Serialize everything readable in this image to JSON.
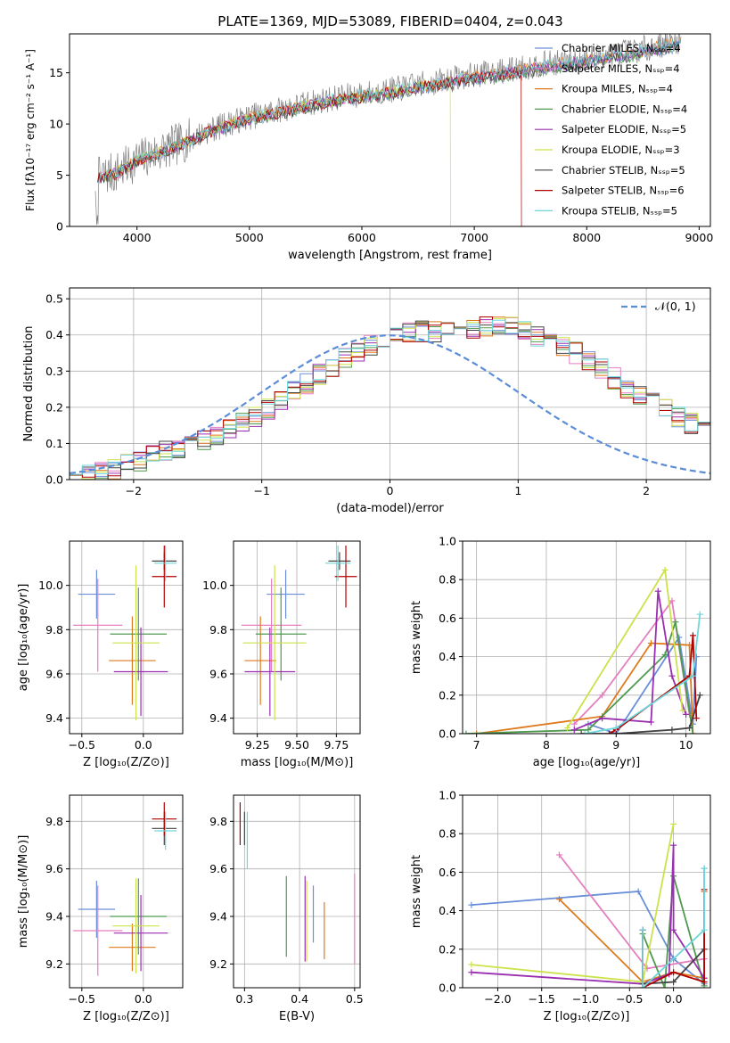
{
  "figure_title": "PLATE=1369, MJD=53089, FIBERID=0404, z=0.043",
  "colors": {
    "chabrier_miles": "#6a8fd8",
    "salpeter_miles": "#e57fc0",
    "kroupa_miles": "#de7a1e",
    "chabrier_elodie": "#4f9a4f",
    "salpeter_elodie": "#9a2eb0",
    "kroupa_elodie": "#cde24a",
    "chabrier_stelib": "#444444",
    "salpeter_stelib": "#b00000",
    "kroupa_stelib": "#6fd6dc",
    "spectrum": "#808080",
    "normal_curve": "#5b8dd9",
    "grid": "#b0b0b0"
  },
  "chart_data": [
    {
      "id": "spectrum",
      "type": "line",
      "xlabel": "wavelength [Angstrom, rest frame]",
      "ylabel": "Flux [fλ10⁻¹⁷ erg cm⁻² s⁻¹ A⁻¹]",
      "xlim": [
        3400,
        9100
      ],
      "ylim": [
        0,
        18.8
      ],
      "xticks": [
        4000,
        5000,
        6000,
        7000,
        8000,
        9000
      ],
      "yticks": [
        0,
        5,
        10,
        15
      ],
      "grid": false,
      "legend_position": "right",
      "legend": [
        {
          "label": "Chabrier MILES, Nₛₛₚ=4",
          "color_key": "chabrier_miles"
        },
        {
          "label": "Salpeter MILES, Nₛₛₚ=4",
          "color_key": "salpeter_miles"
        },
        {
          "label": "Kroupa MILES, Nₛₛₚ=4",
          "color_key": "kroupa_miles"
        },
        {
          "label": "Chabrier ELODIE, Nₛₛₚ=4",
          "color_key": "chabrier_elodie"
        },
        {
          "label": "Salpeter ELODIE, Nₛₛₚ=5",
          "color_key": "salpeter_elodie"
        },
        {
          "label": "Kroupa ELODIE, Nₛₛₚ=3",
          "color_key": "kroupa_elodie"
        },
        {
          "label": "Chabrier STELIB, Nₛₛₚ=5",
          "color_key": "chabrier_stelib"
        },
        {
          "label": "Salpeter STELIB, Nₛₛₚ=6",
          "color_key": "salpeter_stelib"
        },
        {
          "label": "Kroupa STELIB, Nₛₛₚ=5",
          "color_key": "kroupa_stelib"
        }
      ],
      "continuum": {
        "x": [
          3620,
          3700,
          3800,
          3900,
          4000,
          4200,
          4400,
          4600,
          4800,
          5000,
          5200,
          5400,
          5600,
          5800,
          6000,
          6200,
          6400,
          6600,
          6800,
          7000,
          7200,
          7400,
          7600,
          7800,
          8000,
          8200,
          8400,
          8600,
          8800
        ],
        "y": [
          4.5,
          5.0,
          5.2,
          5.8,
          6.5,
          7.3,
          8.2,
          9.2,
          10.0,
          10.7,
          11.2,
          11.7,
          12.2,
          12.6,
          12.9,
          13.2,
          13.6,
          14.0,
          14.4,
          14.8,
          15.1,
          15.4,
          15.8,
          16.1,
          16.4,
          16.8,
          17.1,
          17.6,
          18.1
        ]
      }
    },
    {
      "id": "residuals",
      "type": "histogram",
      "xlabel": "(data-model)/error",
      "ylabel": "Normed distribution",
      "xlim": [
        -2.5,
        2.5
      ],
      "ylim": [
        0,
        0.53
      ],
      "xticks": [
        -2,
        -1,
        0,
        1,
        2
      ],
      "yticks": [
        0.0,
        0.1,
        0.2,
        0.3,
        0.4,
        0.5
      ],
      "grid": true,
      "legend_position": "top-right",
      "legend": [
        {
          "label": "𝒩(0, 1)",
          "color_key": "normal_curve"
        }
      ],
      "bin_width": 0.1,
      "bin_start": -2.5,
      "base_profile": [
        0.02,
        0.02,
        0.025,
        0.03,
        0.04,
        0.05,
        0.065,
        0.08,
        0.09,
        0.1,
        0.11,
        0.125,
        0.14,
        0.155,
        0.175,
        0.195,
        0.22,
        0.245,
        0.265,
        0.29,
        0.31,
        0.335,
        0.355,
        0.37,
        0.385,
        0.395,
        0.405,
        0.41,
        0.41,
        0.415,
        0.415,
        0.42,
        0.42,
        0.425,
        0.42,
        0.41,
        0.395,
        0.385,
        0.37,
        0.35,
        0.325,
        0.305,
        0.28,
        0.255,
        0.235,
        0.215,
        0.195,
        0.175,
        0.155,
        0.135,
        0.12,
        0.105,
        0.09,
        0.075,
        0.065,
        0.055,
        0.045,
        0.035,
        0.03,
        0.025
      ]
    },
    {
      "id": "age_vs_z",
      "type": "errorbar",
      "xlabel": "Z [log₁₀(Z/Z⊙)]",
      "ylabel": "age  [log₁₀(age/yr)]",
      "xlim": [
        -0.6,
        0.32
      ],
      "ylim": [
        9.33,
        10.2
      ],
      "xticks": [
        -0.5,
        0.0
      ],
      "yticks": [
        9.4,
        9.6,
        9.8,
        10.0
      ],
      "grid": true,
      "points": [
        {
          "color_key": "chabrier_miles",
          "x": -0.38,
          "xerr": 0.15,
          "y": 9.96,
          "yerr": 0.11
        },
        {
          "color_key": "salpeter_miles",
          "x": -0.37,
          "xerr": 0.2,
          "y": 9.82,
          "yerr": 0.21
        },
        {
          "color_key": "kroupa_miles",
          "x": -0.09,
          "xerr": 0.19,
          "y": 9.66,
          "yerr": 0.2
        },
        {
          "color_key": "chabrier_elodie",
          "x": -0.04,
          "xerr": 0.23,
          "y": 9.78,
          "yerr": 0.21
        },
        {
          "color_key": "salpeter_elodie",
          "x": -0.02,
          "xerr": 0.22,
          "y": 9.61,
          "yerr": 0.2
        },
        {
          "color_key": "kroupa_elodie",
          "x": -0.06,
          "xerr": 0.19,
          "y": 9.74,
          "yerr": 0.35
        },
        {
          "color_key": "chabrier_stelib",
          "x": 0.17,
          "xerr": 0.1,
          "y": 10.11,
          "yerr": 0.04
        },
        {
          "color_key": "salpeter_stelib",
          "x": 0.17,
          "xerr": 0.1,
          "y": 10.04,
          "yerr": 0.14
        },
        {
          "color_key": "kroupa_stelib",
          "x": 0.18,
          "xerr": 0.09,
          "y": 10.1,
          "yerr": 0.08
        }
      ]
    },
    {
      "id": "age_vs_mass",
      "type": "errorbar",
      "xlabel": "mass [log₁₀(M/M⊙)]",
      "ylabel": "",
      "xlim": [
        9.1,
        9.9
      ],
      "ylim": [
        9.33,
        10.2
      ],
      "xticks": [
        9.25,
        9.5,
        9.75
      ],
      "yticks": [
        9.4,
        9.6,
        9.8,
        10.0
      ],
      "grid": true,
      "points": [
        {
          "color_key": "chabrier_miles",
          "x": 9.43,
          "xerr": 0.12,
          "y": 9.96,
          "yerr": 0.11
        },
        {
          "color_key": "salpeter_miles",
          "x": 9.34,
          "xerr": 0.19,
          "y": 9.82,
          "yerr": 0.21
        },
        {
          "color_key": "kroupa_miles",
          "x": 9.27,
          "xerr": 0.1,
          "y": 9.66,
          "yerr": 0.2
        },
        {
          "color_key": "chabrier_elodie",
          "x": 9.4,
          "xerr": 0.16,
          "y": 9.78,
          "yerr": 0.21
        },
        {
          "color_key": "salpeter_elodie",
          "x": 9.33,
          "xerr": 0.16,
          "y": 9.61,
          "yerr": 0.2
        },
        {
          "color_key": "kroupa_elodie",
          "x": 9.36,
          "xerr": 0.2,
          "y": 9.74,
          "yerr": 0.35
        },
        {
          "color_key": "chabrier_stelib",
          "x": 9.77,
          "xerr": 0.07,
          "y": 10.11,
          "yerr": 0.04
        },
        {
          "color_key": "salpeter_stelib",
          "x": 9.81,
          "xerr": 0.07,
          "y": 10.04,
          "yerr": 0.14
        },
        {
          "color_key": "kroupa_stelib",
          "x": 9.76,
          "xerr": 0.08,
          "y": 10.1,
          "yerr": 0.08
        }
      ]
    },
    {
      "id": "weight_vs_age",
      "type": "line",
      "xlabel": "age  [log₁₀(age/yr)]",
      "ylabel": "mass weight",
      "xlim": [
        6.8,
        10.35
      ],
      "ylim": [
        0,
        1
      ],
      "xticks": [
        7,
        8,
        9,
        10
      ],
      "yticks": [
        0.0,
        0.2,
        0.4,
        0.6,
        0.8,
        1.0
      ],
      "grid": true,
      "series": [
        {
          "color_key": "chabrier_miles",
          "x": [
            8.6,
            9.0,
            9.9,
            10.1,
            10.15
          ],
          "y": [
            0.05,
            0.0,
            0.5,
            0.05,
            0.4
          ]
        },
        {
          "color_key": "salpeter_miles",
          "x": [
            8.4,
            8.8,
            9.8,
            10.05
          ],
          "y": [
            0.05,
            0.2,
            0.69,
            0.1
          ]
        },
        {
          "color_key": "kroupa_miles",
          "x": [
            7.0,
            8.8,
            9.5,
            10.05,
            10.1
          ],
          "y": [
            0.0,
            0.09,
            0.47,
            0.46,
            0.0
          ]
        },
        {
          "color_key": "chabrier_elodie",
          "x": [
            6.85,
            8.6,
            9.7,
            9.85,
            10.1
          ],
          "y": [
            0.0,
            0.02,
            0.41,
            0.58,
            0.0
          ]
        },
        {
          "color_key": "salpeter_elodie",
          "x": [
            8.4,
            8.8,
            9.5,
            9.6,
            9.8,
            10.0
          ],
          "y": [
            0.02,
            0.08,
            0.06,
            0.74,
            0.3,
            0.1
          ]
        },
        {
          "color_key": "kroupa_elodie",
          "x": [
            8.3,
            9.7,
            9.95
          ],
          "y": [
            0.03,
            0.85,
            0.12
          ]
        },
        {
          "color_key": "chabrier_stelib",
          "x": [
            8.5,
            9.0,
            9.8,
            10.05,
            10.2
          ],
          "y": [
            0.0,
            0.0,
            0.02,
            0.03,
            0.2
          ]
        },
        {
          "color_key": "salpeter_stelib",
          "x": [
            8.9,
            9.0,
            10.05,
            10.1,
            10.15
          ],
          "y": [
            0.0,
            0.02,
            0.3,
            0.51,
            0.08
          ]
        },
        {
          "color_key": "kroupa_stelib",
          "x": [
            8.55,
            9.0,
            10.1,
            10.2
          ],
          "y": [
            0.0,
            0.03,
            0.3,
            0.62
          ]
        }
      ]
    },
    {
      "id": "mass_vs_z",
      "type": "errorbar",
      "xlabel": "Z [log₁₀(Z/Z⊙)]",
      "ylabel": "mass [log₁₀(M/M⊙)]",
      "xlim": [
        -0.6,
        0.32
      ],
      "ylim": [
        9.1,
        9.91
      ],
      "xticks": [
        -0.5,
        0.0
      ],
      "yticks": [
        9.2,
        9.4,
        9.6,
        9.8
      ],
      "grid": true,
      "points": [
        {
          "color_key": "chabrier_miles",
          "x": -0.38,
          "xerr": 0.15,
          "y": 9.43,
          "yerr": 0.12
        },
        {
          "color_key": "salpeter_miles",
          "x": -0.37,
          "xerr": 0.2,
          "y": 9.34,
          "yerr": 0.19
        },
        {
          "color_key": "kroupa_miles",
          "x": -0.09,
          "xerr": 0.19,
          "y": 9.27,
          "yerr": 0.1
        },
        {
          "color_key": "chabrier_elodie",
          "x": -0.04,
          "xerr": 0.23,
          "y": 9.4,
          "yerr": 0.16
        },
        {
          "color_key": "salpeter_elodie",
          "x": -0.02,
          "xerr": 0.22,
          "y": 9.33,
          "yerr": 0.16
        },
        {
          "color_key": "kroupa_elodie",
          "x": -0.06,
          "xerr": 0.19,
          "y": 9.36,
          "yerr": 0.2
        },
        {
          "color_key": "chabrier_stelib",
          "x": 0.17,
          "xerr": 0.1,
          "y": 9.77,
          "yerr": 0.07
        },
        {
          "color_key": "salpeter_stelib",
          "x": 0.17,
          "xerr": 0.1,
          "y": 9.81,
          "yerr": 0.07
        },
        {
          "color_key": "kroupa_stelib",
          "x": 0.18,
          "xerr": 0.09,
          "y": 9.76,
          "yerr": 0.08
        }
      ]
    },
    {
      "id": "mass_vs_ebv",
      "type": "errorbar",
      "xlabel": "E(B-V)",
      "ylabel": "",
      "xlim": [
        0.28,
        0.51
      ],
      "ylim": [
        9.1,
        9.91
      ],
      "xticks": [
        0.3,
        0.4,
        0.5
      ],
      "yticks": [
        9.2,
        9.4,
        9.6,
        9.8
      ],
      "grid": true,
      "points": [
        {
          "color_key": "chabrier_miles",
          "x": 0.425,
          "xerr": 0,
          "y": 9.41,
          "yerr": 0.12
        },
        {
          "color_key": "salpeter_miles",
          "x": 0.5,
          "xerr": 0,
          "y": 9.39,
          "yerr": 0.19
        },
        {
          "color_key": "kroupa_miles",
          "x": 0.445,
          "xerr": 0,
          "y": 9.34,
          "yerr": 0.12
        },
        {
          "color_key": "chabrier_elodie",
          "x": 0.376,
          "xerr": 0,
          "y": 9.4,
          "yerr": 0.17
        },
        {
          "color_key": "salpeter_elodie",
          "x": 0.41,
          "xerr": 0,
          "y": 9.39,
          "yerr": 0.18
        },
        {
          "color_key": "kroupa_elodie",
          "x": 0.413,
          "xerr": 0,
          "y": 9.38,
          "yerr": 0.17
        },
        {
          "color_key": "chabrier_stelib",
          "x": 0.3,
          "xerr": 0,
          "y": 9.77,
          "yerr": 0.07
        },
        {
          "color_key": "salpeter_stelib",
          "x": 0.292,
          "xerr": 0,
          "y": 9.79,
          "yerr": 0.09
        },
        {
          "color_key": "kroupa_stelib",
          "x": 0.305,
          "xerr": 0,
          "y": 9.72,
          "yerr": 0.12
        }
      ]
    },
    {
      "id": "weight_vs_z",
      "type": "line",
      "xlabel": "Z [log₁₀(Z/Z⊙)]",
      "ylabel": "mass weight",
      "xlim": [
        -2.4,
        0.42
      ],
      "ylim": [
        0,
        1
      ],
      "xticks": [
        -2.0,
        -1.5,
        -1.0,
        -0.5,
        0.0
      ],
      "yticks": [
        0.0,
        0.2,
        0.4,
        0.6,
        0.8,
        1.0
      ],
      "grid": true,
      "series": [
        {
          "color_key": "chabrier_miles",
          "x": [
            -2.3,
            -0.4,
            0.0,
            0.35,
            0.35
          ],
          "y": [
            0.43,
            0.5,
            0.15,
            0.02,
            0.62
          ]
        },
        {
          "color_key": "salpeter_miles",
          "x": [
            -1.3,
            -0.3,
            0.35,
            0.35
          ],
          "y": [
            0.69,
            0.1,
            0.15,
            0.5
          ]
        },
        {
          "color_key": "kroupa_miles",
          "x": [
            -1.3,
            -0.35,
            0.0,
            0.35,
            0.35
          ],
          "y": [
            0.46,
            0.03,
            0.08,
            0.05,
            0.5
          ]
        },
        {
          "color_key": "chabrier_elodie",
          "x": [
            -0.35,
            -0.1,
            0.0,
            0.35
          ],
          "y": [
            0.28,
            0.0,
            0.58,
            0.01
          ]
        },
        {
          "color_key": "salpeter_elodie",
          "x": [
            -2.3,
            -0.35,
            -0.05,
            0.0,
            0.0,
            0.35
          ],
          "y": [
            0.08,
            0.02,
            0.07,
            0.74,
            0.3,
            0.05
          ]
        },
        {
          "color_key": "kroupa_elodie",
          "x": [
            -2.3,
            -0.35,
            0.0
          ],
          "y": [
            0.12,
            0.03,
            0.85
          ]
        },
        {
          "color_key": "chabrier_stelib",
          "x": [
            -0.35,
            -0.35,
            0.0,
            0.35
          ],
          "y": [
            0.3,
            0.02,
            0.03,
            0.2
          ]
        },
        {
          "color_key": "salpeter_stelib",
          "x": [
            -0.35,
            -0.35,
            0.0,
            0.35,
            0.35
          ],
          "y": [
            0.3,
            0.0,
            0.08,
            0.03,
            0.51
          ]
        },
        {
          "color_key": "kroupa_stelib",
          "x": [
            -0.35,
            -0.35,
            0.35,
            0.35
          ],
          "y": [
            0.3,
            0.0,
            0.3,
            0.62
          ]
        }
      ]
    }
  ]
}
